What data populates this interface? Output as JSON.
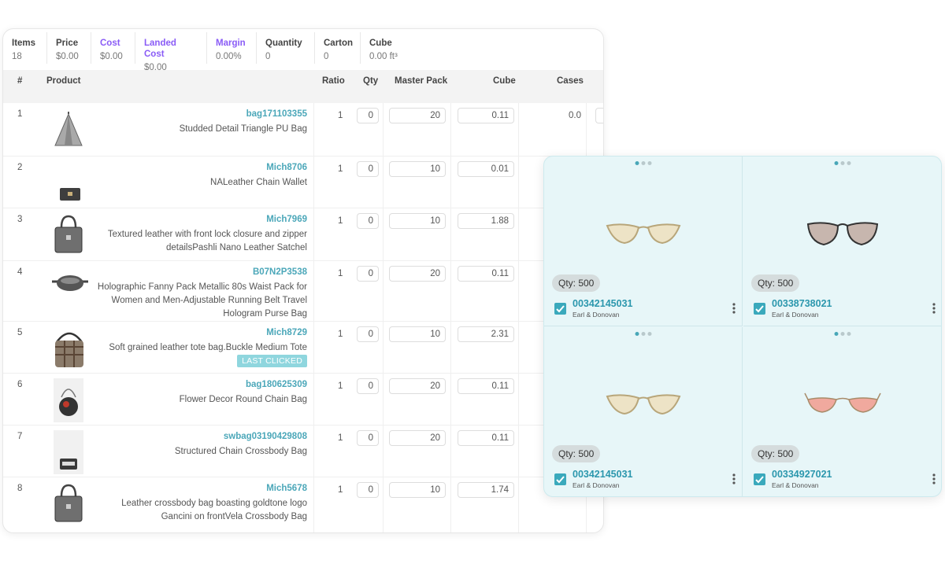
{
  "summary": [
    {
      "label": "Items",
      "value": "18",
      "accent": false
    },
    {
      "label": "Price",
      "value": "$0.00",
      "accent": false
    },
    {
      "label": "Cost",
      "value": "$0.00",
      "accent": true
    },
    {
      "label": "Landed Cost",
      "value": "$0.00",
      "accent": true
    },
    {
      "label": "Margin",
      "value": "0.00%",
      "accent": true
    },
    {
      "label": "Quantity",
      "value": "0",
      "accent": false
    },
    {
      "label": "Carton",
      "value": "0",
      "accent": false
    },
    {
      "label": "Cube",
      "value": "0.00 ft³",
      "accent": false
    }
  ],
  "columns": {
    "num": "#",
    "product": "Product",
    "ratio": "Ratio",
    "qty": "Qty",
    "master_pack": "Master Pack",
    "cube": "Cube",
    "cases": "Cases"
  },
  "rows": [
    {
      "num": "1",
      "sku": "bag171103355",
      "desc": "Studded Detail Triangle PU Bag",
      "ratio": "1",
      "qty": "0",
      "master_pack": "20",
      "cube": "0.11",
      "cases": "0.0"
    },
    {
      "num": "2",
      "sku": "Mich8706",
      "desc": "NALeather Chain Wallet",
      "ratio": "1",
      "qty": "0",
      "master_pack": "10",
      "cube": "0.01",
      "cases": ""
    },
    {
      "num": "3",
      "sku": "Mich7969",
      "desc": "Textured leather with front lock closure and zipper detailsPashli Nano Leather Satchel",
      "ratio": "1",
      "qty": "0",
      "master_pack": "10",
      "cube": "1.88",
      "cases": ""
    },
    {
      "num": "4",
      "sku": "B07N2P3538",
      "desc": "Holographic Fanny Pack Metallic 80s Waist Pack for Women and Men-Adjustable Running Belt Travel Hologram Purse Bag",
      "ratio": "1",
      "qty": "0",
      "master_pack": "20",
      "cube": "0.11",
      "cases": ""
    },
    {
      "num": "5",
      "sku": "Mich8729",
      "desc": "Soft grained leather tote bag.Buckle Medium Tote",
      "ratio": "1",
      "qty": "0",
      "master_pack": "10",
      "cube": "2.31",
      "cases": "",
      "badge": "LAST CLICKED"
    },
    {
      "num": "6",
      "sku": "bag180625309",
      "desc": "Flower Decor Round Chain Bag",
      "ratio": "1",
      "qty": "0",
      "master_pack": "20",
      "cube": "0.11",
      "cases": ""
    },
    {
      "num": "7",
      "sku": "swbag03190429808",
      "desc": "Structured Chain Crossbody Bag",
      "ratio": "1",
      "qty": "0",
      "master_pack": "20",
      "cube": "0.11",
      "cases": ""
    },
    {
      "num": "8",
      "sku": "Mich5678",
      "desc": "Leather crossbody bag boasting goldtone logo Gancini on frontVela Crossbody Bag",
      "ratio": "1",
      "qty": "0",
      "master_pack": "10",
      "cube": "1.74",
      "cases": ""
    }
  ],
  "tiles": [
    {
      "qty": "Qty: 500",
      "sku": "00342145031",
      "brand": "Earl & Donovan",
      "icon": "cat-eye-sunglasses-icon"
    },
    {
      "qty": "Qty: 500",
      "sku": "00338738021",
      "brand": "Earl & Donovan",
      "icon": "round-sunglasses-icon"
    },
    {
      "qty": "Qty: 500",
      "sku": "00342145031",
      "brand": "Earl & Donovan",
      "icon": "cat-eye-sunglasses-icon"
    },
    {
      "qty": "Qty: 500",
      "sku": "00334927021",
      "brand": "Earl & Donovan",
      "icon": "pink-cat-eye-sunglasses-icon"
    }
  ],
  "colors": {
    "accent_teal": "#4ba7b9",
    "accent_purple": "#8a5cf6",
    "grid_bg": "#e7f6f8",
    "badge": "#8fd6de"
  }
}
